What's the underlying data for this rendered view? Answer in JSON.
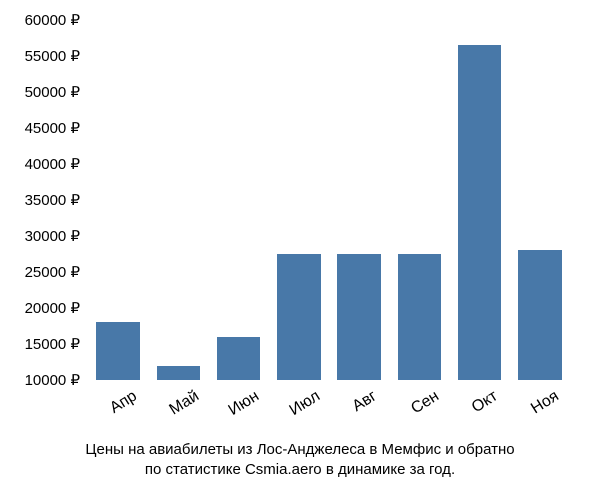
{
  "chart": {
    "type": "bar",
    "y_min": 10000,
    "y_max": 60000,
    "y_tick_step": 5000,
    "y_tick_suffix": " ₽",
    "y_tick_fontsize": 15,
    "y_tick_color": "#000000",
    "bar_color": "#4878a8",
    "background_color": "#ffffff",
    "bar_width_rel": 0.72,
    "categories": [
      "Апр",
      "Май",
      "Июн",
      "Июл",
      "Авг",
      "Сен",
      "Окт",
      "Ноя"
    ],
    "values": [
      18000,
      12000,
      16000,
      27500,
      27500,
      27500,
      56500,
      28000
    ],
    "x_label_fontsize": 16,
    "x_label_color": "#000000",
    "x_label_rotation_deg": -32
  },
  "caption": {
    "line1": "Цены на авиабилеты из Лос-Анджелеса в Мемфис и обратно",
    "line2": "по статистике Csmia.aero в динамике за год.",
    "fontsize": 15,
    "color": "#000000"
  }
}
